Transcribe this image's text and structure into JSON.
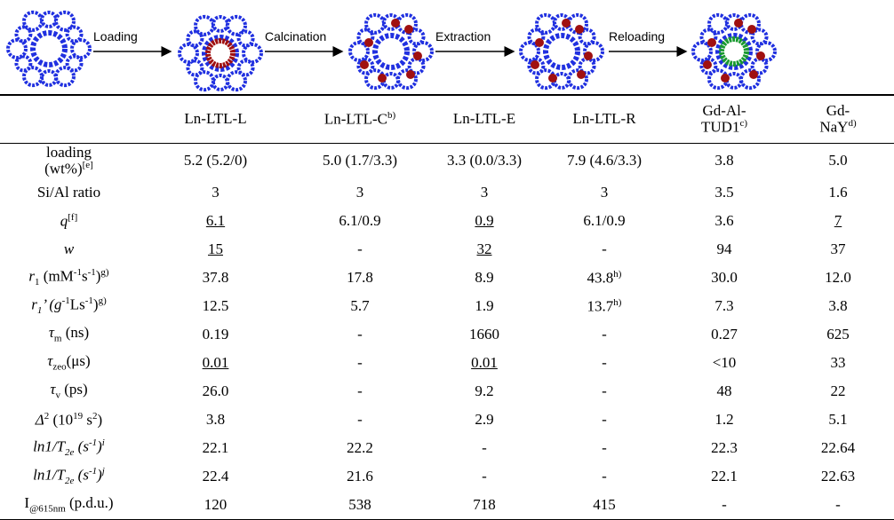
{
  "diagram": {
    "steps": [
      "Loading",
      "Calcination",
      "Extraction",
      "Reloading"
    ]
  },
  "table": {
    "header": [
      "Ln-LTL-L",
      [
        "Ln-LTL-C",
        "b)"
      ],
      "Ln-LTL-E",
      "Ln-LTL-R",
      [
        "Gd-Al-TUD1",
        "c)"
      ],
      [
        "Gd-NaY",
        "d)"
      ]
    ],
    "rows": [
      {
        "label": [
          "loading",
          "(wt%)",
          "[e]"
        ],
        "cells": [
          "5.2 (5.2/0)",
          "5.0 (1.7/3.3)",
          "3.3 (0.0/3.3)",
          "7.9 (4.6/3.3)",
          "3.8",
          "5.0"
        ]
      },
      {
        "label": [
          "Si/Al ratio"
        ],
        "cells": [
          "3",
          "3",
          "3",
          "3",
          "3.5",
          "1.6"
        ]
      },
      {
        "label": [
          "q",
          "[f]"
        ],
        "cells": [
          "6.1",
          "6.1/0.9",
          "0.9",
          "6.1/0.9",
          "3.6",
          "7"
        ]
      },
      {
        "label": [
          "w"
        ],
        "cells": [
          "15",
          "-",
          "32",
          "-",
          "94",
          "37"
        ]
      },
      {
        "label": [
          "r",
          "1",
          " (mM",
          "-1",
          "s",
          "-1",
          ")",
          "g)"
        ],
        "cells": [
          "37.8",
          "17.8",
          "8.9",
          [
            "43.8",
            "h)"
          ],
          "30.0",
          "12.0"
        ]
      },
      {
        "label": [
          "r",
          "1",
          "’ (g",
          "-1",
          "Ls",
          "-1",
          ")",
          "g)"
        ],
        "cells": [
          "12.5",
          "5.7",
          "1.9",
          [
            "13.7",
            "h)"
          ],
          "7.3",
          "3.8"
        ]
      },
      {
        "label": [
          "τ",
          "m",
          " (ns)"
        ],
        "cells": [
          "0.19",
          "-",
          "1660",
          "-",
          "0.27",
          "625"
        ]
      },
      {
        "label": [
          "τ",
          "zeo",
          "(μs)"
        ],
        "cells": [
          "0.01",
          "-",
          "0.01",
          "-",
          "<10",
          "33"
        ]
      },
      {
        "label": [
          "τ",
          "v",
          " (ps)"
        ],
        "cells": [
          "26.0",
          "-",
          "9.2",
          "-",
          "48",
          "22"
        ]
      },
      {
        "label": [
          "Δ",
          "2",
          " (10",
          "19",
          " s",
          "2",
          ")"
        ],
        "cells": [
          "3.8",
          "-",
          "2.9",
          "-",
          "1.2",
          "5.1"
        ]
      },
      {
        "label": [
          "ln1/T",
          "2e",
          " (s",
          "-1",
          ")",
          "i"
        ],
        "cells": [
          "22.1",
          "22.2",
          "-",
          "-",
          "22.3",
          "22.64"
        ]
      },
      {
        "label": [
          "ln1/T",
          "2e",
          " (s",
          "-1",
          ")",
          "j"
        ],
        "cells": [
          "22.4",
          "21.6",
          "-",
          "-",
          "22.1",
          "22.63"
        ]
      },
      {
        "label": [
          "I",
          "@615nm",
          " (p.d.u.)"
        ],
        "cells": [
          "120",
          "538",
          "718",
          "415",
          "-",
          "-"
        ]
      }
    ]
  }
}
